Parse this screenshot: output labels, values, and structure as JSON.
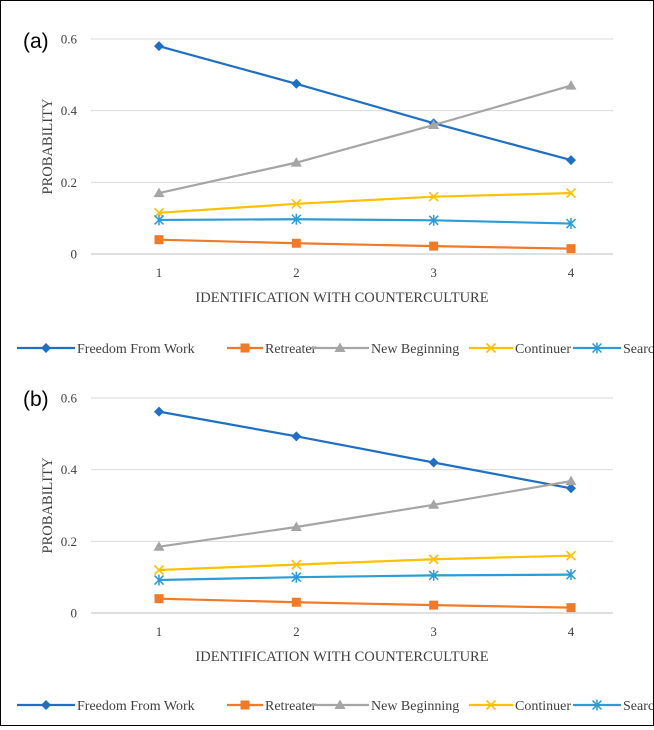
{
  "legend": {
    "items": [
      {
        "name": "Freedom From Work",
        "color": "#1f6fc4",
        "marker": "diamond"
      },
      {
        "name": "Retreater",
        "color": "#f07a2a",
        "marker": "square"
      },
      {
        "name": "New Beginning",
        "color": "#a5a5a5",
        "marker": "triangle"
      },
      {
        "name": "Continuer",
        "color": "#ffc000",
        "marker": "x"
      },
      {
        "name": "Searcher",
        "color": "#2c9bd6",
        "marker": "star"
      }
    ]
  },
  "chart_data": [
    {
      "type": "line",
      "panel_label": "(a)",
      "xlabel": "IDENTIFICATION WITH COUNTERCULTURE",
      "ylabel": "PROBABILITY",
      "categories": [
        "1",
        "2",
        "3",
        "4"
      ],
      "ylim": [
        0,
        0.6
      ],
      "yticks": [
        "0",
        "0.2",
        "0.4",
        "0.6"
      ],
      "grid": true,
      "legend_position": "bottom",
      "series": [
        {
          "name": "Freedom From Work",
          "values": [
            0.58,
            0.475,
            0.365,
            0.262
          ]
        },
        {
          "name": "Retreater",
          "values": [
            0.04,
            0.03,
            0.022,
            0.015
          ]
        },
        {
          "name": "New Beginning",
          "values": [
            0.17,
            0.255,
            0.36,
            0.47
          ]
        },
        {
          "name": "Continuer",
          "values": [
            0.115,
            0.14,
            0.16,
            0.17
          ]
        },
        {
          "name": "Searcher",
          "values": [
            0.095,
            0.097,
            0.094,
            0.085
          ]
        }
      ]
    },
    {
      "type": "line",
      "panel_label": "(b)",
      "xlabel": "IDENTIFICATION WITH COUNTERCULTURE",
      "ylabel": "PROBABILITY",
      "categories": [
        "1",
        "2",
        "3",
        "4"
      ],
      "ylim": [
        0,
        0.6
      ],
      "yticks": [
        "0",
        "0.2",
        "0.4",
        "0.6"
      ],
      "grid": true,
      "legend_position": "bottom",
      "series": [
        {
          "name": "Freedom From Work",
          "values": [
            0.562,
            0.493,
            0.42,
            0.348
          ]
        },
        {
          "name": "Retreater",
          "values": [
            0.04,
            0.03,
            0.022,
            0.015
          ]
        },
        {
          "name": "New Beginning",
          "values": [
            0.185,
            0.24,
            0.302,
            0.368
          ]
        },
        {
          "name": "Continuer",
          "values": [
            0.12,
            0.135,
            0.15,
            0.16
          ]
        },
        {
          "name": "Searcher",
          "values": [
            0.092,
            0.1,
            0.105,
            0.107
          ]
        }
      ]
    }
  ]
}
